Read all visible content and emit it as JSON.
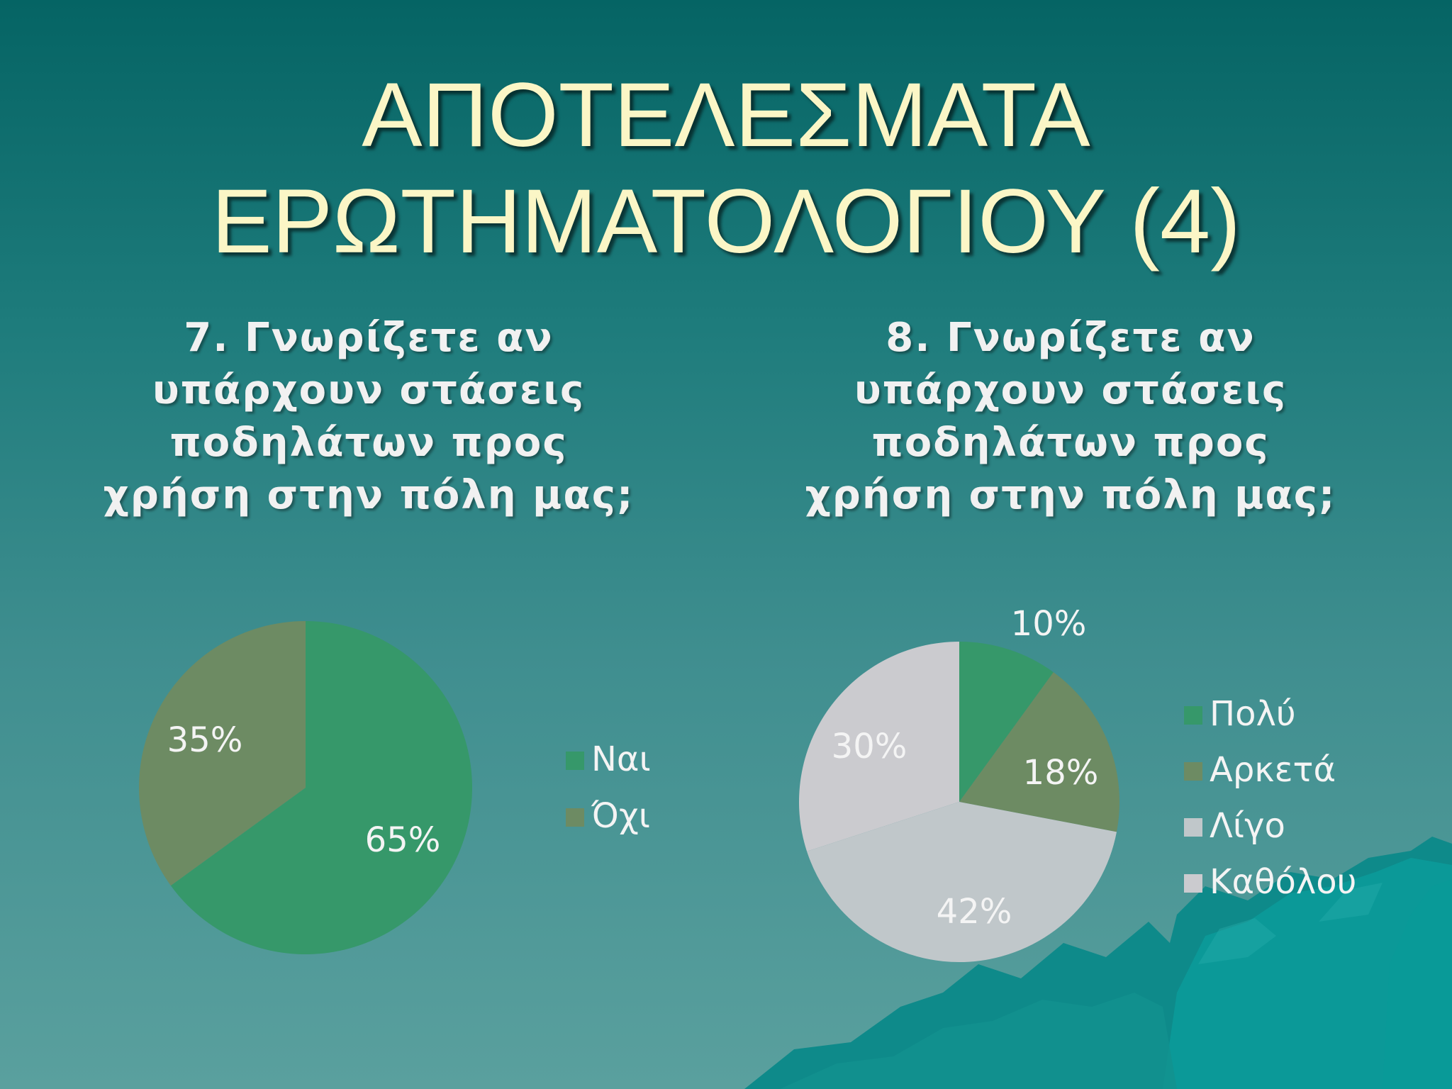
{
  "slide": {
    "title_line1": "ΑΠΟΤΕΛΕΣΜΑΤΑ",
    "title_line2": "ΕΡΩΤΗΜΑΤΟΛΟΓΙΟΥ (4)"
  },
  "chart_data": [
    {
      "type": "pie",
      "title": "7. Γνωρίζετε αν υπάρχουν στάσεις ποδηλάτων προς χρήση στην πόλη μας;",
      "categories": [
        "Ναι",
        "Όχι"
      ],
      "values": [
        65,
        35
      ],
      "labels": [
        "65%",
        "35%"
      ],
      "colors": [
        "#36986a",
        "#6d8b63"
      ],
      "start_angle_deg": 0,
      "direction": "clockwise",
      "legend_position": "right"
    },
    {
      "type": "pie",
      "title": "8. Γνωρίζετε αν υπάρχουν στάσεις ποδηλάτων προς χρήση στην πόλη μας;",
      "categories": [
        "Πολύ",
        "Αρκετά",
        "Λίγο",
        "Καθόλου"
      ],
      "values": [
        10,
        18,
        42,
        30
      ],
      "labels": [
        "10%",
        "18%",
        "42%",
        "30%"
      ],
      "colors": [
        "#36986a",
        "#6d8b63",
        "#c0c7ca",
        "#cbcbcf"
      ],
      "start_angle_deg": 0,
      "direction": "clockwise",
      "legend_position": "right"
    }
  ]
}
